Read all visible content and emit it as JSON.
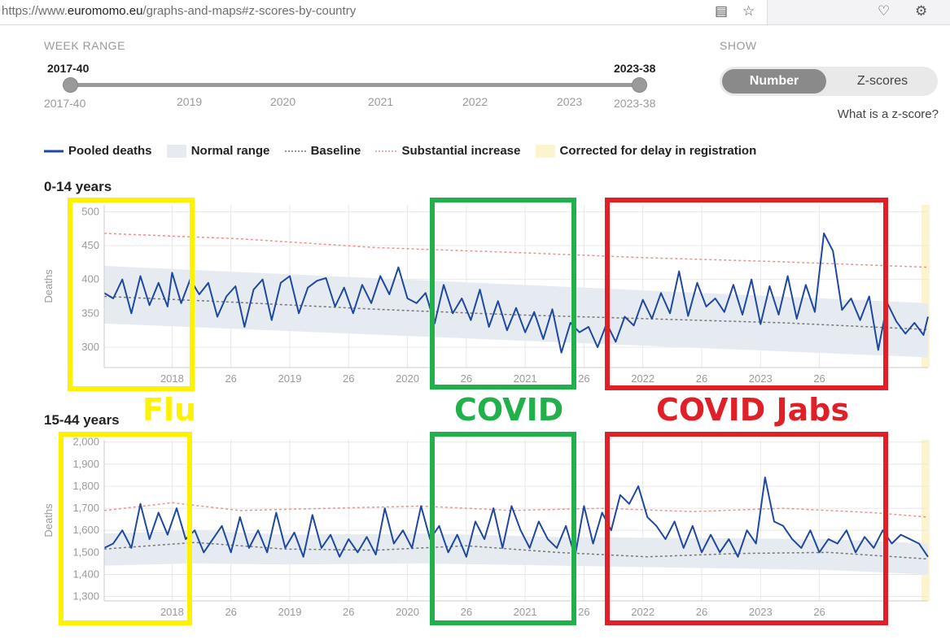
{
  "browser": {
    "url_prefix": "https://www.",
    "url_domain": "euromomo.eu",
    "url_path": "/graphs-and-maps#z-scores-by-country"
  },
  "controls": {
    "week_range_label": "WEEK RANGE",
    "range_start": "2017-40",
    "range_end": "2023-38",
    "axis_start": "2017-40",
    "axis_end": "2023-38",
    "years": [
      "2019",
      "2020",
      "2021",
      "2022",
      "2023"
    ],
    "show_label": "SHOW",
    "toggle_number": "Number",
    "toggle_zscores": "Z-scores",
    "what_is_z": "What is a z-score?"
  },
  "legend": {
    "pooled": "Pooled deaths",
    "normal": "Normal range",
    "baseline": "Baseline",
    "substantial": "Substantial increase",
    "corrected": "Corrected for delay in registration"
  },
  "colors": {
    "pooled": "#1f48a0",
    "normal": "#e6ebf1",
    "baseline": "#777777",
    "substantial": "#f0908a",
    "corrected": "#fbf4cf",
    "flu_box": "#fff200",
    "covid_box": "#22b04a",
    "jabs_box": "#e01f26"
  },
  "annotations": {
    "flu": "Flu",
    "covid": "COVID",
    "jabs": "COVID Jabs"
  },
  "chart_data": [
    {
      "type": "line",
      "title": "0-14 years",
      "ylabel": "Deaths",
      "ylim": [
        270,
        510
      ],
      "yticks": [
        "300",
        "350",
        "400",
        "450",
        "500"
      ],
      "xticks": [
        "2018",
        "26",
        "2019",
        "26",
        "2020",
        "26",
        "2021",
        "26",
        "2022",
        "26",
        "2023",
        "26"
      ],
      "x_range": "2017-40 to 2023-38",
      "series": [
        {
          "points": [
            [
              0,
              380
            ],
            [
              4,
              372
            ],
            [
              8,
              400
            ],
            [
              12,
              350
            ],
            [
              16,
              405
            ],
            [
              20,
              362
            ],
            [
              24,
              395
            ],
            [
              28,
              360
            ],
            [
              30,
              410
            ],
            [
              34,
              365
            ],
            [
              38,
              400
            ],
            [
              42,
              378
            ],
            [
              46,
              395
            ],
            [
              50,
              345
            ],
            [
              54,
              375
            ],
            [
              58,
              390
            ],
            [
              62,
              330
            ],
            [
              66,
              385
            ],
            [
              70,
              400
            ],
            [
              74,
              340
            ],
            [
              78,
              395
            ],
            [
              82,
              405
            ],
            [
              86,
              350
            ],
            [
              90,
              388
            ],
            [
              94,
              398
            ],
            [
              98,
              402
            ],
            [
              102,
              360
            ],
            [
              106,
              388
            ],
            [
              110,
              350
            ],
            [
              114,
              392
            ],
            [
              118,
              365
            ],
            [
              122,
              405
            ],
            [
              126,
              378
            ],
            [
              130,
              418
            ],
            [
              134,
              372
            ],
            [
              138,
              365
            ],
            [
              142,
              380
            ],
            [
              146,
              335
            ],
            [
              150,
              392
            ],
            [
              154,
              350
            ],
            [
              158,
              372
            ],
            [
              162,
              340
            ],
            [
              166,
              385
            ],
            [
              170,
              330
            ],
            [
              174,
              368
            ],
            [
              178,
              325
            ],
            [
              182,
              358
            ],
            [
              186,
              322
            ],
            [
              190,
              352
            ],
            [
              194,
              312
            ],
            [
              198,
              356
            ],
            [
              202,
              292
            ],
            [
              206,
              336
            ],
            [
              210,
              322
            ],
            [
              214,
              330
            ],
            [
              218,
              300
            ],
            [
              222,
              335
            ],
            [
              226,
              308
            ],
            [
              230,
              345
            ],
            [
              234,
              332
            ],
            [
              238,
              370
            ],
            [
              242,
              342
            ],
            [
              246,
              380
            ],
            [
              250,
              350
            ],
            [
              254,
              412
            ],
            [
              258,
              346
            ],
            [
              262,
              395
            ],
            [
              266,
              360
            ],
            [
              270,
              372
            ],
            [
              274,
              352
            ],
            [
              278,
              392
            ],
            [
              282,
              348
            ],
            [
              286,
              400
            ],
            [
              290,
              334
            ],
            [
              294,
              390
            ],
            [
              298,
              348
            ],
            [
              302,
              405
            ],
            [
              306,
              342
            ],
            [
              310,
              392
            ],
            [
              314,
              352
            ],
            [
              318,
              468
            ],
            [
              322,
              442
            ],
            [
              326,
              355
            ],
            [
              330,
              372
            ],
            [
              334,
              340
            ],
            [
              338,
              375
            ],
            [
              342,
              296
            ],
            [
              346,
              365
            ],
            [
              350,
              338
            ],
            [
              354,
              320
            ],
            [
              358,
              336
            ],
            [
              362,
              318
            ],
            [
              364,
              345
            ]
          ]
        }
      ],
      "baseline_points": [
        [
          0,
          375
        ],
        [
          60,
          366
        ],
        [
          120,
          356
        ],
        [
          180,
          348
        ],
        [
          240,
          342
        ],
        [
          300,
          336
        ],
        [
          364,
          326
        ]
      ],
      "substantial_points": [
        [
          0,
          468
        ],
        [
          60,
          460
        ],
        [
          120,
          447
        ],
        [
          180,
          440
        ],
        [
          240,
          432
        ],
        [
          300,
          426
        ],
        [
          364,
          418
        ]
      ],
      "normal_range": {
        "upper": [
          [
            0,
            420
          ],
          [
            364,
            365
          ]
        ],
        "lower": [
          [
            0,
            335
          ],
          [
            364,
            285
          ]
        ]
      }
    },
    {
      "type": "line",
      "title": "15-44 years",
      "ylabel": "Deaths",
      "ylim": [
        1280,
        2010
      ],
      "yticks": [
        "1,300",
        "1,400",
        "1,500",
        "1,600",
        "1,700",
        "1,800",
        "1,900",
        "2,000"
      ],
      "xticks": [
        "2018",
        "26",
        "2019",
        "26",
        "2020",
        "26",
        "2021",
        "26",
        "2022",
        "26",
        "2023",
        "26"
      ],
      "x_range": "2017-40 to 2023-38",
      "series": [
        {
          "points": [
            [
              0,
              1520
            ],
            [
              4,
              1540
            ],
            [
              8,
              1600
            ],
            [
              12,
              1520
            ],
            [
              16,
              1720
            ],
            [
              20,
              1560
            ],
            [
              24,
              1680
            ],
            [
              28,
              1580
            ],
            [
              32,
              1700
            ],
            [
              36,
              1560
            ],
            [
              40,
              1600
            ],
            [
              44,
              1500
            ],
            [
              48,
              1560
            ],
            [
              52,
              1620
            ],
            [
              56,
              1500
            ],
            [
              60,
              1660
            ],
            [
              64,
              1520
            ],
            [
              68,
              1600
            ],
            [
              72,
              1500
            ],
            [
              76,
              1680
            ],
            [
              80,
              1520
            ],
            [
              84,
              1590
            ],
            [
              88,
              1480
            ],
            [
              92,
              1670
            ],
            [
              96,
              1520
            ],
            [
              100,
              1580
            ],
            [
              104,
              1480
            ],
            [
              108,
              1560
            ],
            [
              112,
              1500
            ],
            [
              116,
              1570
            ],
            [
              120,
              1490
            ],
            [
              124,
              1700
            ],
            [
              128,
              1540
            ],
            [
              132,
              1600
            ],
            [
              136,
              1520
            ],
            [
              140,
              1710
            ],
            [
              144,
              1560
            ],
            [
              148,
              1620
            ],
            [
              152,
              1500
            ],
            [
              156,
              1580
            ],
            [
              160,
              1480
            ],
            [
              164,
              1640
            ],
            [
              168,
              1560
            ],
            [
              172,
              1700
            ],
            [
              176,
              1520
            ],
            [
              180,
              1710
            ],
            [
              184,
              1600
            ],
            [
              188,
              1520
            ],
            [
              192,
              1640
            ],
            [
              196,
              1560
            ],
            [
              200,
              1520
            ],
            [
              204,
              1620
            ],
            [
              208,
              1480
            ],
            [
              212,
              1710
            ],
            [
              216,
              1540
            ],
            [
              220,
              1680
            ],
            [
              224,
              1600
            ],
            [
              228,
              1760
            ],
            [
              232,
              1720
            ],
            [
              236,
              1800
            ],
            [
              240,
              1660
            ],
            [
              244,
              1620
            ],
            [
              248,
              1560
            ],
            [
              252,
              1640
            ],
            [
              256,
              1520
            ],
            [
              260,
              1620
            ],
            [
              264,
              1500
            ],
            [
              268,
              1580
            ],
            [
              272,
              1500
            ],
            [
              276,
              1560
            ],
            [
              280,
              1480
            ],
            [
              284,
              1600
            ],
            [
              288,
              1540
            ],
            [
              292,
              1840
            ],
            [
              296,
              1640
            ],
            [
              300,
              1620
            ],
            [
              304,
              1560
            ],
            [
              308,
              1520
            ],
            [
              312,
              1600
            ],
            [
              316,
              1500
            ],
            [
              320,
              1560
            ],
            [
              324,
              1540
            ],
            [
              328,
              1600
            ],
            [
              332,
              1500
            ],
            [
              336,
              1570
            ],
            [
              340,
              1520
            ],
            [
              344,
              1600
            ],
            [
              348,
              1540
            ],
            [
              352,
              1580
            ],
            [
              356,
              1560
            ],
            [
              360,
              1540
            ],
            [
              364,
              1480
            ]
          ]
        }
      ],
      "baseline_points": [
        [
          0,
          1515
        ],
        [
          40,
          1545
        ],
        [
          80,
          1515
        ],
        [
          120,
          1510
        ],
        [
          160,
          1530
        ],
        [
          200,
          1500
        ],
        [
          240,
          1480
        ],
        [
          280,
          1495
        ],
        [
          320,
          1500
        ],
        [
          364,
          1470
        ]
      ],
      "substantial_points": [
        [
          0,
          1690
        ],
        [
          30,
          1725
        ],
        [
          60,
          1690
        ],
        [
          100,
          1700
        ],
        [
          140,
          1710
        ],
        [
          180,
          1690
        ],
        [
          220,
          1700
        ],
        [
          260,
          1685
        ],
        [
          300,
          1700
        ],
        [
          340,
          1680
        ],
        [
          364,
          1660
        ]
      ],
      "normal_range": {
        "upper": [
          [
            0,
            1585
          ],
          [
            40,
            1600
          ],
          [
            80,
            1580
          ],
          [
            140,
            1585
          ],
          [
            200,
            1570
          ],
          [
            260,
            1565
          ],
          [
            320,
            1560
          ],
          [
            364,
            1540
          ]
        ],
        "lower": [
          [
            0,
            1440
          ],
          [
            40,
            1450
          ],
          [
            80,
            1445
          ],
          [
            140,
            1450
          ],
          [
            200,
            1440
          ],
          [
            260,
            1430
          ],
          [
            320,
            1420
          ],
          [
            364,
            1400
          ]
        ]
      }
    }
  ]
}
